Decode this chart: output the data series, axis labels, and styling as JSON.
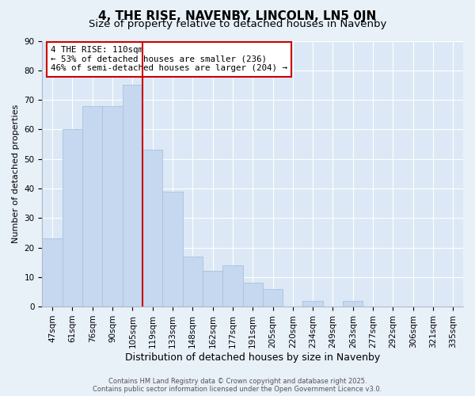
{
  "title": "4, THE RISE, NAVENBY, LINCOLN, LN5 0JN",
  "subtitle": "Size of property relative to detached houses in Navenby",
  "xlabel": "Distribution of detached houses by size in Navenby",
  "ylabel": "Number of detached properties",
  "categories": [
    "47sqm",
    "61sqm",
    "76sqm",
    "90sqm",
    "105sqm",
    "119sqm",
    "133sqm",
    "148sqm",
    "162sqm",
    "177sqm",
    "191sqm",
    "205sqm",
    "220sqm",
    "234sqm",
    "249sqm",
    "263sqm",
    "277sqm",
    "292sqm",
    "306sqm",
    "321sqm",
    "335sqm"
  ],
  "values": [
    23,
    60,
    68,
    68,
    75,
    53,
    39,
    17,
    12,
    14,
    8,
    6,
    0,
    2,
    0,
    2,
    0,
    0,
    0,
    0,
    0
  ],
  "bar_color": "#c5d8f0",
  "bar_edge_color": "#aac0dc",
  "vline_color": "#cc0000",
  "vline_x": 4.5,
  "annotation_line1": "4 THE RISE: 110sqm",
  "annotation_line2": "← 53% of detached houses are smaller (236)",
  "annotation_line3": "46% of semi-detached houses are larger (204) →",
  "annotation_box_color": "#ffffff",
  "annotation_box_edge": "#cc0000",
  "ylim": [
    0,
    90
  ],
  "yticks": [
    0,
    10,
    20,
    30,
    40,
    50,
    60,
    70,
    80,
    90
  ],
  "background_color": "#e8f0f8",
  "plot_bg_color": "#dce8f5",
  "grid_color": "#ffffff",
  "footer_text": "Contains HM Land Registry data © Crown copyright and database right 2025.\nContains public sector information licensed under the Open Government Licence v3.0.",
  "title_fontsize": 11,
  "subtitle_fontsize": 9.5,
  "xlabel_fontsize": 9,
  "ylabel_fontsize": 8,
  "tick_fontsize": 7.5,
  "footer_fontsize": 6
}
